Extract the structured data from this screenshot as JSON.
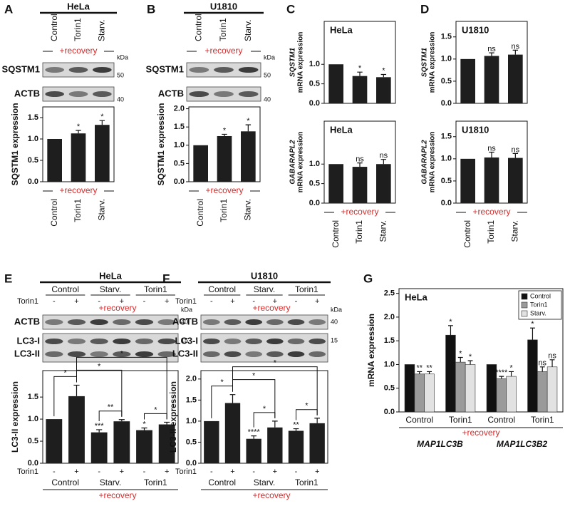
{
  "chart_data": [
    {
      "type": "bar",
      "panel": "A",
      "blot": {
        "title": "HeLa",
        "lanes": [
          "Control",
          "Torin1",
          "Starv."
        ],
        "recovery": "+recovery",
        "bands": [
          "SQSTM1",
          "ACTB"
        ],
        "kda_unit": "kDa",
        "kda": [
          50,
          40
        ]
      },
      "ylabel": "SQSTM1 expression",
      "categories": [
        "Control",
        "Torin1",
        "Starv."
      ],
      "group_label": "+recovery",
      "values": [
        1,
        1.13,
        1.33
      ],
      "errors": [
        null,
        0.07,
        0.1
      ],
      "significance": [
        null,
        "*",
        "*"
      ],
      "color": "#1e1e1e",
      "ylim": [
        0,
        1.75
      ],
      "yticks": [
        {
          "value": 0,
          "label": "0.0"
        },
        {
          "value": 0.5,
          "label": "0.5"
        },
        {
          "value": 1,
          "label": "1.0"
        },
        {
          "value": 1.5,
          "label": "1.5"
        }
      ]
    },
    {
      "type": "bar",
      "panel": "B",
      "blot": {
        "title": "U1810",
        "lanes": [
          "Control",
          "Torin1",
          "Starv."
        ],
        "recovery": "+recovery",
        "bands": [
          "SQSTM1",
          "ACTB"
        ],
        "kda_unit": "kDa",
        "kda": [
          50,
          40
        ]
      },
      "ylabel": "SQSTM1 expression",
      "categories": [
        "Control",
        "Torin1",
        "Starv."
      ],
      "group_label": "+recovery",
      "values": [
        1,
        1.25,
        1.38
      ],
      "errors": [
        null,
        0.05,
        0.18
      ],
      "significance": [
        null,
        "*",
        "*"
      ],
      "color": "#1e1e1e",
      "ylim": [
        0,
        2.05
      ],
      "yticks": [
        {
          "value": 0,
          "label": "0.0"
        },
        {
          "value": 0.5,
          "label": "0.5"
        },
        {
          "value": 1,
          "label": "1.0"
        },
        {
          "value": 1.5,
          "label": "1.5"
        },
        {
          "value": 2,
          "label": "2.0"
        }
      ]
    },
    {
      "type": "bar",
      "panel": "C",
      "title": "HeLa",
      "ylabel_gene": "SQSTM1",
      "ylabel": "mRNA expression",
      "categories": [
        null,
        null,
        null
      ],
      "values": [
        1,
        0.7,
        0.67
      ],
      "errors": [
        null,
        0.1,
        0.07
      ],
      "significance": [
        null,
        "*",
        "*"
      ],
      "color": "#1e1e1e",
      "ylim": [
        0,
        2.1
      ],
      "yticks": [
        {
          "value": 0,
          "label": "0.0"
        },
        {
          "value": 0.5,
          "label": "0.5"
        },
        {
          "value": 1,
          "label": "1.0"
        }
      ]
    },
    {
      "type": "bar",
      "title": "HeLa",
      "ylabel_gene": "GABARAPL2",
      "ylabel": "mRNA expression",
      "categories": [
        "Control",
        "Torin1",
        "Starv."
      ],
      "group_label": "+recovery",
      "values": [
        1,
        0.93,
        1.0
      ],
      "errors": [
        null,
        0.1,
        0.12
      ],
      "significance": [
        null,
        "ns",
        "ns"
      ],
      "color": "#1e1e1e",
      "ylim": [
        0,
        2.1
      ],
      "yticks": [
        {
          "value": 0,
          "label": "0.0"
        },
        {
          "value": 0.5,
          "label": "0.5"
        },
        {
          "value": 1,
          "label": "1.0"
        }
      ]
    },
    {
      "type": "bar",
      "panel": "D",
      "title": "U1810",
      "ylabel_gene": "SQSTM1",
      "ylabel": "mRNA expression",
      "categories": [
        null,
        null,
        null
      ],
      "values": [
        1,
        1.07,
        1.1
      ],
      "errors": [
        null,
        0.07,
        0.1
      ],
      "significance": [
        null,
        "ns",
        "ns"
      ],
      "color": "#1e1e1e",
      "ylim": [
        0,
        1.85
      ],
      "yticks": [
        {
          "value": 0,
          "label": "0.0"
        },
        {
          "value": 0.5,
          "label": "0.5"
        },
        {
          "value": 1,
          "label": "1.0"
        },
        {
          "value": 1.5,
          "label": "1.5"
        }
      ]
    },
    {
      "type": "bar",
      "title": "U1810",
      "ylabel_gene": "GABARAPL2",
      "ylabel": "mRNA expression",
      "categories": [
        "Control",
        "Torin1",
        "Starv."
      ],
      "group_label": "+recovery",
      "values": [
        1,
        1.03,
        1.02
      ],
      "errors": [
        null,
        0.12,
        0.1
      ],
      "significance": [
        null,
        "ns",
        "ns"
      ],
      "color": "#1e1e1e",
      "ylim": [
        0,
        1.85
      ],
      "yticks": [
        {
          "value": 0,
          "label": "0.0"
        },
        {
          "value": 0.5,
          "label": "0.5"
        },
        {
          "value": 1,
          "label": "1.0"
        },
        {
          "value": 1.5,
          "label": "1.5"
        }
      ]
    },
    {
      "type": "bar",
      "panel": "E",
      "blot": {
        "title": "HeLa",
        "groups": [
          "Control",
          "Starv.",
          "Torin1"
        ],
        "treatment": "Torin1",
        "signs": [
          "-",
          "+",
          "-",
          "+",
          "-",
          "+"
        ],
        "recovery": "+recovery",
        "bands": [
          "ACTB",
          "LC3-I",
          "LC3-II"
        ],
        "kda_unit": "kDa",
        "kda": [
          40,
          15
        ]
      },
      "ylabel": "LC3-II expression",
      "treatment_label": "Torin1",
      "categories": [
        "-",
        "+",
        "-",
        "+",
        "-",
        "+"
      ],
      "groups": [
        "Control",
        "Starv.",
        "Torin1"
      ],
      "group_label": "+recovery",
      "values": [
        1,
        1.52,
        0.7,
        0.95,
        0.75,
        0.88
      ],
      "errors": [
        null,
        0.25,
        0.06,
        0.04,
        0.05,
        0.05
      ],
      "significance": [
        null,
        null,
        "***",
        null,
        "*",
        null
      ],
      "comparisons": [
        {
          "from": 0,
          "to": 1,
          "label": "*"
        },
        {
          "from": 1,
          "to": 3,
          "label": "*"
        },
        {
          "from": 1,
          "to": 5,
          "label": "*"
        },
        {
          "from": 2,
          "to": 3,
          "label": "**"
        },
        {
          "from": 4,
          "to": 5,
          "label": "*"
        }
      ],
      "color": "#1e1e1e",
      "ylim": [
        0,
        2.1
      ],
      "yticks": [
        {
          "value": 0,
          "label": "0.0"
        },
        {
          "value": 0.5,
          "label": "0.5"
        },
        {
          "value": 1,
          "label": "1.0"
        },
        {
          "value": 1.5,
          "label": "1.5"
        }
      ]
    },
    {
      "type": "bar",
      "panel": "F",
      "blot": {
        "title": "U1810",
        "groups": [
          "Control",
          "Starv.",
          "Torin1"
        ],
        "treatment": "Torin1",
        "signs": [
          "-",
          "+",
          "-",
          "+",
          "-",
          "+"
        ],
        "recovery": "+recovery",
        "bands": [
          "ACTB",
          "LC3-I",
          "LC3-II"
        ],
        "kda_unit": "kDa",
        "kda": [
          40,
          15
        ]
      },
      "ylabel": "LC3-II expression",
      "treatment_label": "Torin1",
      "categories": [
        "-",
        "+",
        "-",
        "+",
        "-",
        "+"
      ],
      "groups": [
        "Control",
        "Starv.",
        "Torin1"
      ],
      "group_label": "+recovery",
      "values": [
        1,
        1.43,
        0.58,
        0.85,
        0.77,
        0.95
      ],
      "errors": [
        null,
        0.2,
        0.07,
        0.15,
        0.05,
        0.12
      ],
      "significance": [
        null,
        null,
        "****",
        null,
        "**",
        null
      ],
      "comparisons": [
        {
          "from": 0,
          "to": 1,
          "label": "*"
        },
        {
          "from": 1,
          "to": 3,
          "label": "*"
        },
        {
          "from": 1,
          "to": 5,
          "label": "*"
        },
        {
          "from": 2,
          "to": 3,
          "label": "*"
        },
        {
          "from": 4,
          "to": 5,
          "label": "*"
        }
      ],
      "color": "#1e1e1e",
      "ylim": [
        0,
        2.2
      ],
      "yticks": [
        {
          "value": 0,
          "label": "0.0"
        },
        {
          "value": 0.5,
          "label": "0.5"
        },
        {
          "value": 1,
          "label": "1.0"
        },
        {
          "value": 1.5,
          "label": "1.5"
        },
        {
          "value": 2,
          "label": "2.0"
        }
      ]
    },
    {
      "type": "grouped_bar",
      "panel": "G",
      "title": "HeLa",
      "ylabel": "mRNA expression",
      "categories": [
        "Control",
        "Torin1",
        "Control",
        "Torin1"
      ],
      "groups": [
        "MAP1LC3B",
        "MAP1LC3B2"
      ],
      "group_label": "+recovery",
      "series": [
        {
          "name": "Control",
          "color": "#111111",
          "values": [
            1,
            1.62,
            1,
            1.52
          ],
          "errors": [
            null,
            0.2,
            null,
            0.25
          ],
          "significance": [
            null,
            "*",
            null,
            "*"
          ]
        },
        {
          "name": "Torin1",
          "color": "#9a9a9a",
          "values": [
            0.8,
            1.05,
            0.7,
            0.85
          ],
          "errors": [
            0.05,
            0.1,
            0.05,
            0.1
          ],
          "significance": [
            "**",
            "*",
            "****",
            "ns"
          ]
        },
        {
          "name": "Starv.",
          "color": "#e2e2e2",
          "values": [
            0.8,
            1.0,
            0.75,
            0.95
          ],
          "errors": [
            0.05,
            0.08,
            0.1,
            0.15
          ],
          "significance": [
            "**",
            "*",
            "*",
            "ns"
          ]
        }
      ],
      "legend": "top-right",
      "ylim": [
        0,
        2.6
      ],
      "yticks": [
        {
          "value": 0,
          "label": "0.0"
        },
        {
          "value": 0.5,
          "label": "0.5"
        },
        {
          "value": 1,
          "label": "1.0"
        },
        {
          "value": 1.5,
          "label": "1.5"
        },
        {
          "value": 2,
          "label": "2.0"
        },
        {
          "value": 2.5,
          "label": "2.5"
        }
      ]
    }
  ]
}
